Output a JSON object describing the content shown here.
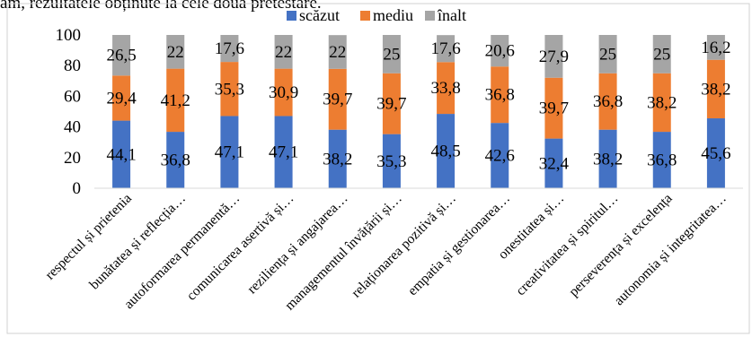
{
  "top_text": "ăm, rezultatele obținute la cele doua pretestare.",
  "chart_data": {
    "type": "bar",
    "stacked": true,
    "categories": [
      "respectul și prietenia",
      "bunătatea și reflecția…",
      "autoformarea permanentă…",
      "comunicarea asertivă și…",
      "reziliența și angajarea…",
      "managementul învățării și…",
      "relaționarea pozitivă și…",
      "empatia și gestionarea…",
      "onestitatea și…",
      "creativitatea și spiritul…",
      "perseverența și excelența",
      "autonomia și integritatea…"
    ],
    "series": [
      {
        "name": "scăzut",
        "color": "#4472C4",
        "values": [
          44.1,
          36.8,
          47.1,
          47.1,
          38.2,
          35.3,
          48.5,
          42.6,
          32.4,
          38.2,
          36.8,
          45.6
        ]
      },
      {
        "name": "mediu",
        "color": "#ED7D31",
        "values": [
          29.4,
          41.2,
          35.3,
          30.9,
          39.7,
          39.7,
          33.8,
          36.8,
          39.7,
          36.8,
          38.2,
          38.2
        ]
      },
      {
        "name": "înalt",
        "color": "#A5A5A5",
        "values": [
          26.5,
          22,
          17.6,
          22,
          22,
          25,
          17.6,
          20.6,
          27.9,
          25,
          25,
          16.2
        ]
      }
    ],
    "value_labels": [
      [
        "44,1",
        "36,8",
        "47,1",
        "47,1",
        "38,2",
        "35,3",
        "48,5",
        "42,6",
        "32,4",
        "38,2",
        "36,8",
        "45,6"
      ],
      [
        "29,4",
        "41,2",
        "35,3",
        "30,9",
        "39,7",
        "39,7",
        "33,8",
        "36,8",
        "39,7",
        "36,8",
        "38,2",
        "38,2"
      ],
      [
        "26,5",
        "22",
        "17,6",
        "22",
        "22",
        "25",
        "17,6",
        "20,6",
        "27,9",
        "25",
        "25",
        "16,2"
      ]
    ],
    "y_ticks": [
      "0",
      "20",
      "40",
      "60",
      "80",
      "100"
    ],
    "ylim": [
      0,
      100
    ],
    "legend_position": "top",
    "grid": false
  }
}
